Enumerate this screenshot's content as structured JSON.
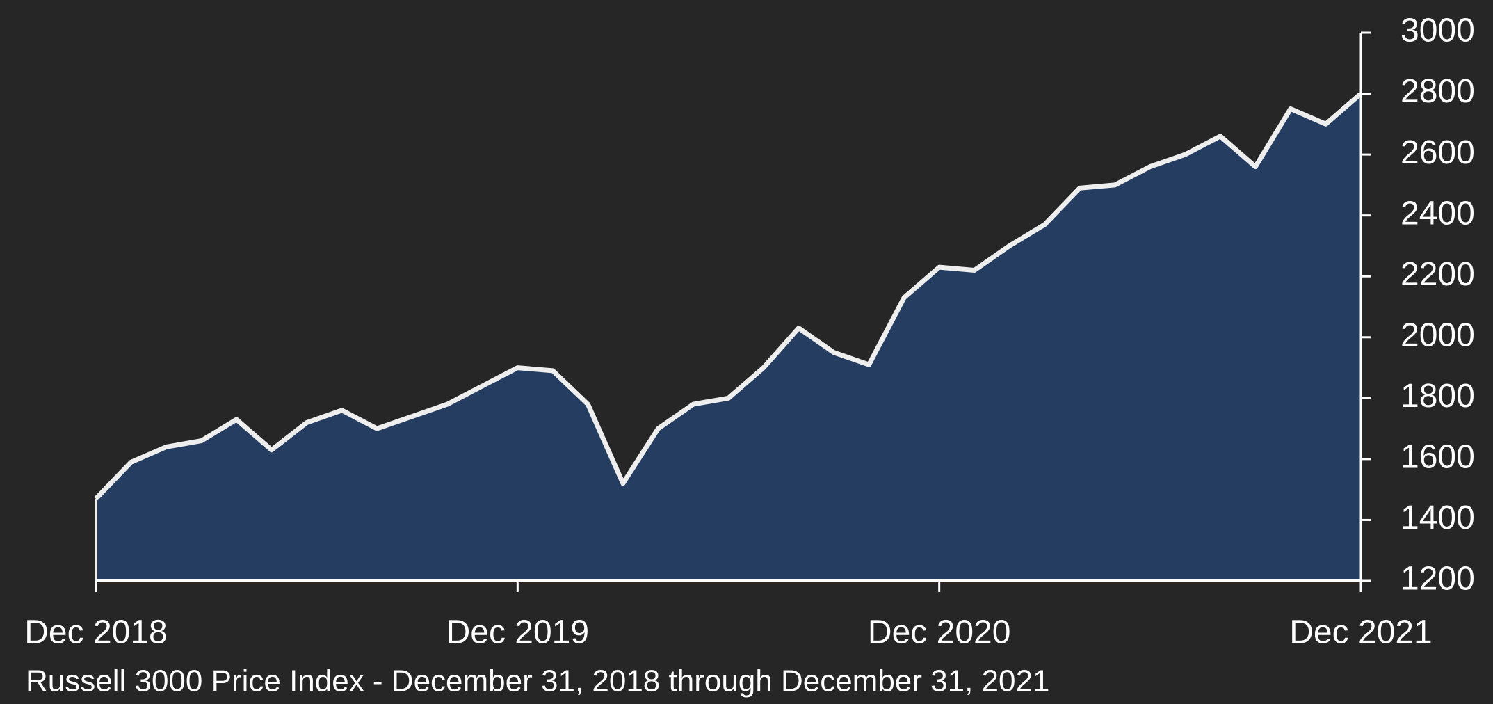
{
  "chart_data": {
    "type": "area",
    "title": "Russell 3000 Price Index - December 31, 2018 through December 31, 2021",
    "x": [
      "2018-12",
      "2019-01",
      "2019-02",
      "2019-03",
      "2019-04",
      "2019-05",
      "2019-06",
      "2019-07",
      "2019-08",
      "2019-09",
      "2019-10",
      "2019-11",
      "2019-12",
      "2020-01",
      "2020-02",
      "2020-03",
      "2020-04",
      "2020-05",
      "2020-06",
      "2020-07",
      "2020-08",
      "2020-09",
      "2020-10",
      "2020-11",
      "2020-12",
      "2021-01",
      "2021-02",
      "2021-03",
      "2021-04",
      "2021-05",
      "2021-06",
      "2021-07",
      "2021-08",
      "2021-09",
      "2021-10",
      "2021-11",
      "2021-12"
    ],
    "series": [
      {
        "name": "Russell 3000 Price Index",
        "color": "#253d60",
        "line_color": "#eeeeee",
        "values": [
          1470,
          1590,
          1640,
          1660,
          1730,
          1630,
          1720,
          1760,
          1700,
          1740,
          1780,
          1840,
          1900,
          1890,
          1780,
          1520,
          1700,
          1780,
          1800,
          1900,
          2030,
          1950,
          1910,
          2130,
          2230,
          2220,
          2300,
          2370,
          2490,
          2500,
          2560,
          2600,
          2660,
          2560,
          2750,
          2700,
          2800
        ]
      }
    ],
    "xlim": [
      "2018-12",
      "2021-12"
    ],
    "xticks": [
      {
        "value": "2018-12",
        "label": "Dec 2018"
      },
      {
        "value": "2019-12",
        "label": "Dec 2019"
      },
      {
        "value": "2020-12",
        "label": "Dec 2020"
      },
      {
        "value": "2021-12",
        "label": "Dec 2021"
      }
    ],
    "ylim": [
      1200,
      3000
    ],
    "yticks": [
      1200,
      1400,
      1600,
      1800,
      2000,
      2200,
      2400,
      2600,
      2800,
      3000
    ],
    "y_axis_side": "right",
    "grid": false
  }
}
